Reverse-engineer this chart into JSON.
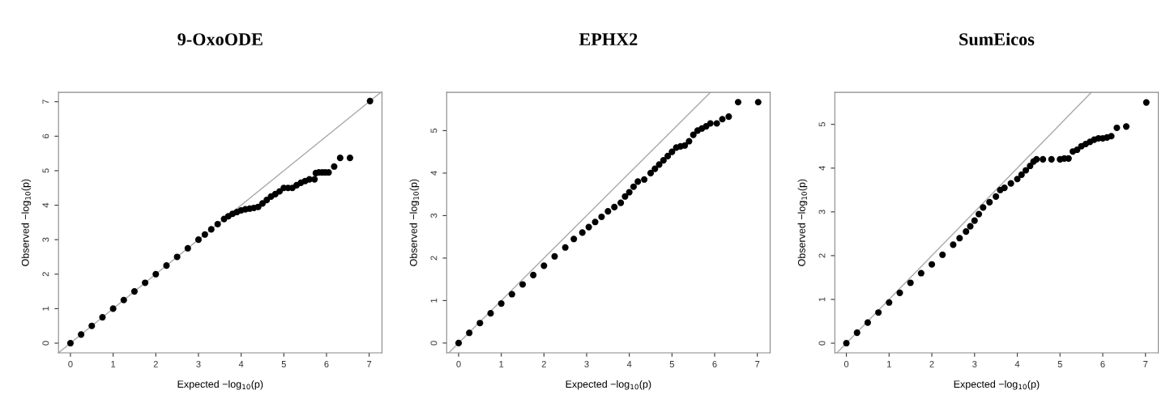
{
  "chart_data": [
    {
      "type": "scatter",
      "title": "9-OxoODE",
      "xlabel": "Expected −log$_{10}$(p)",
      "ylabel": "Observed −log$_{10}$(p)",
      "xlim": [
        -0.28,
        7.3
      ],
      "ylim": [
        -0.28,
        7.27
      ],
      "xticks": [
        0,
        1,
        2,
        3,
        4,
        5,
        6,
        7
      ],
      "yticks": [
        0,
        1,
        2,
        3,
        4,
        5,
        6,
        7
      ],
      "grid": false,
      "series": [
        {
          "type": "line",
          "color": "#aaaaaa",
          "marker": "none",
          "line_style": "solid",
          "x": [
            -0.28,
            7.27
          ],
          "values": [
            -0.28,
            7.27
          ]
        },
        {
          "color": "#000000",
          "marker": "circle",
          "x": [
            0,
            0.25,
            0.5,
            0.75,
            1,
            1.25,
            1.5,
            1.75,
            2,
            2.25,
            2.5,
            2.75,
            3,
            3.15,
            3.3,
            3.45,
            3.6,
            3.7,
            3.8,
            3.9,
            4.0,
            4.1,
            4.2,
            4.3,
            4.4,
            4.5,
            4.6,
            4.7,
            4.8,
            4.9,
            5.0,
            5.1,
            5.2,
            5.3,
            5.4,
            5.5,
            5.6,
            5.72,
            5.75,
            5.82,
            5.9,
            5.97,
            6.05,
            6.18,
            6.32,
            6.55,
            7.02
          ],
          "values": [
            0,
            0.25,
            0.5,
            0.75,
            1,
            1.25,
            1.5,
            1.75,
            2,
            2.25,
            2.5,
            2.75,
            3,
            3.15,
            3.3,
            3.45,
            3.6,
            3.68,
            3.75,
            3.8,
            3.85,
            3.88,
            3.9,
            3.92,
            3.95,
            4.05,
            4.15,
            4.25,
            4.32,
            4.4,
            4.5,
            4.5,
            4.5,
            4.58,
            4.65,
            4.7,
            4.75,
            4.75,
            4.93,
            4.95,
            4.95,
            4.95,
            4.95,
            5.12,
            5.37,
            5.37,
            7.02
          ]
        }
      ]
    },
    {
      "type": "scatter",
      "title": "EPHX2",
      "xlabel": "Expected −log$_{10}$(p)",
      "ylabel": "Observed −log$_{10}$(p)",
      "xlim": [
        -0.28,
        7.3
      ],
      "ylim": [
        -0.23,
        5.9
      ],
      "xticks": [
        0,
        1,
        2,
        3,
        4,
        5,
        6,
        7
      ],
      "yticks": [
        0,
        1,
        2,
        3,
        4,
        5
      ],
      "grid": false,
      "series": [
        {
          "type": "line",
          "color": "#aaaaaa",
          "marker": "none",
          "line_style": "solid",
          "x": [
            -0.23,
            5.9
          ],
          "values": [
            -0.23,
            5.9
          ]
        },
        {
          "color": "#000000",
          "marker": "circle",
          "x": [
            0,
            0.25,
            0.5,
            0.75,
            1,
            1.25,
            1.5,
            1.75,
            2,
            2.25,
            2.5,
            2.7,
            2.9,
            3.05,
            3.2,
            3.35,
            3.5,
            3.65,
            3.8,
            3.9,
            4.0,
            4.1,
            4.2,
            4.35,
            4.5,
            4.6,
            4.7,
            4.8,
            4.9,
            5.0,
            5.1,
            5.2,
            5.3,
            5.4,
            5.5,
            5.6,
            5.7,
            5.8,
            5.9,
            6.05,
            6.18,
            6.33,
            6.55,
            7.02
          ],
          "values": [
            0,
            0.24,
            0.47,
            0.7,
            0.93,
            1.15,
            1.38,
            1.6,
            1.82,
            2.04,
            2.25,
            2.45,
            2.6,
            2.73,
            2.85,
            2.97,
            3.1,
            3.2,
            3.3,
            3.45,
            3.55,
            3.68,
            3.8,
            3.85,
            4.0,
            4.1,
            4.2,
            4.3,
            4.4,
            4.5,
            4.6,
            4.63,
            4.65,
            4.75,
            4.9,
            5.0,
            5.05,
            5.1,
            5.17,
            5.17,
            5.27,
            5.33,
            5.67,
            5.67
          ]
        }
      ]
    },
    {
      "type": "scatter",
      "title": "SumEicos",
      "xlabel": "Expected −log$_{10}$(p)",
      "ylabel": "Observed −log$_{10}$(p)",
      "xlim": [
        -0.27,
        7.3
      ],
      "ylim": [
        -0.22,
        5.73
      ],
      "xticks": [
        0,
        1,
        2,
        3,
        4,
        5,
        6,
        7
      ],
      "yticks": [
        0,
        1,
        2,
        3,
        4,
        5
      ],
      "grid": false,
      "series": [
        {
          "type": "line",
          "color": "#aaaaaa",
          "marker": "none",
          "line_style": "solid",
          "x": [
            -0.22,
            5.73
          ],
          "values": [
            -0.22,
            5.73
          ]
        },
        {
          "color": "#000000",
          "marker": "circle",
          "x": [
            0,
            0.25,
            0.5,
            0.75,
            1,
            1.25,
            1.5,
            1.75,
            2,
            2.25,
            2.5,
            2.65,
            2.8,
            2.9,
            3.0,
            3.1,
            3.2,
            3.35,
            3.5,
            3.6,
            3.7,
            3.85,
            4.0,
            4.1,
            4.2,
            4.3,
            4.38,
            4.45,
            4.6,
            4.8,
            5.0,
            5.1,
            5.2,
            5.3,
            5.4,
            5.5,
            5.6,
            5.7,
            5.8,
            5.9,
            6.0,
            6.1,
            6.2,
            6.33,
            6.55,
            7.02
          ],
          "values": [
            0,
            0.24,
            0.47,
            0.7,
            0.93,
            1.15,
            1.38,
            1.6,
            1.8,
            2.02,
            2.25,
            2.4,
            2.55,
            2.67,
            2.8,
            2.95,
            3.1,
            3.22,
            3.35,
            3.5,
            3.55,
            3.65,
            3.75,
            3.85,
            3.95,
            4.05,
            4.15,
            4.2,
            4.2,
            4.2,
            4.2,
            4.22,
            4.22,
            4.38,
            4.42,
            4.5,
            4.55,
            4.6,
            4.65,
            4.68,
            4.68,
            4.7,
            4.73,
            4.92,
            4.95,
            5.5
          ]
        }
      ]
    }
  ]
}
